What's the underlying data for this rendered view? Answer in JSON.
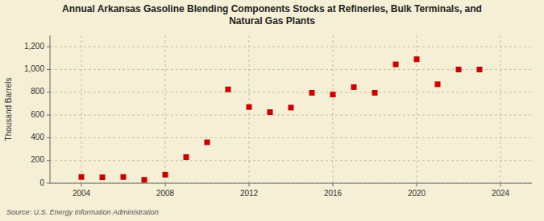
{
  "chart_data": {
    "type": "scatter",
    "title": "Annual Arkansas Gasoline Blending Components Stocks at Refineries, Bulk Terminals, and\nNatural Gas Plants",
    "y_label": "Thousand Barrels",
    "annotations": [
      "Source: U.S. Energy Information Administration"
    ],
    "x": [
      2004,
      2005,
      2006,
      2007,
      2008,
      2009,
      2010,
      2011,
      2012,
      2013,
      2014,
      2015,
      2016,
      2017,
      2018,
      2019,
      2020,
      2021,
      2022,
      2023
    ],
    "values": [
      55,
      52,
      55,
      30,
      75,
      230,
      360,
      825,
      670,
      625,
      665,
      795,
      780,
      845,
      795,
      1045,
      1090,
      870,
      1000,
      1000
    ],
    "color": "#cc0000",
    "marker": "square",
    "xlim": [
      2002.5,
      2025.5
    ],
    "ylim": [
      0,
      1300
    ],
    "xticks": [
      2004,
      2008,
      2012,
      2016,
      2020,
      2024
    ],
    "yticks": [
      0,
      200,
      400,
      600,
      {
        "value": 800,
        "label": "800"
      },
      {
        "value": 1000,
        "label": "1,000"
      },
      {
        "value": 1200,
        "label": "1,200"
      }
    ],
    "grid": true
  }
}
